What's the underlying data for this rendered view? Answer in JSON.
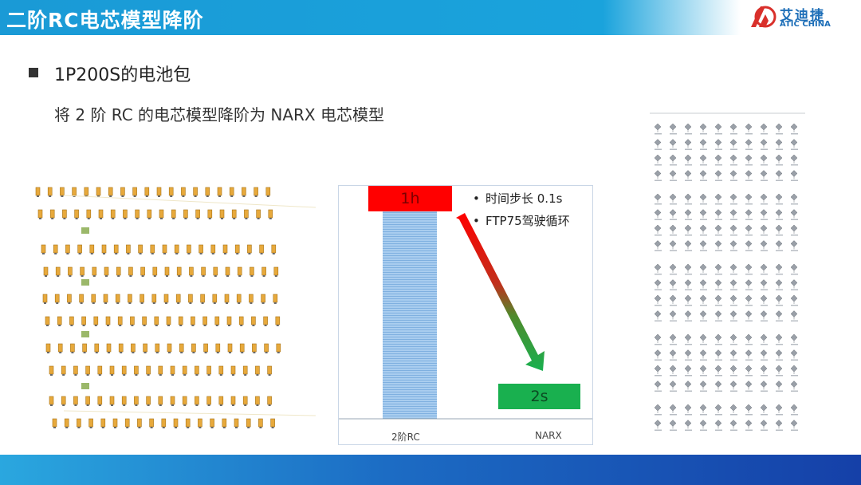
{
  "header": {
    "title": "二阶RC电芯模型降阶"
  },
  "logo": {
    "cn": "艾迪捷",
    "en": "ATIC CHINA"
  },
  "section": {
    "title": "1P200S的电池包",
    "subtitle": "将 2 阶 RC 的电芯模型降阶为 NARX 电芯模型"
  },
  "chart_data": {
    "type": "bar",
    "categories": [
      "2阶RC",
      "NARX"
    ],
    "bar_labels": [
      "1h",
      "2s"
    ],
    "colors": {
      "rc_bar": "#9fc5ea",
      "red_box": "#ff0000",
      "green_box": "#19b04f"
    },
    "notes": [
      "时间步长 0.1s",
      "FTP75驾驶循环"
    ]
  },
  "colors": {
    "header": "#1a9ad6",
    "footer_start": "#2aa7df",
    "footer_end": "#1540a8"
  }
}
